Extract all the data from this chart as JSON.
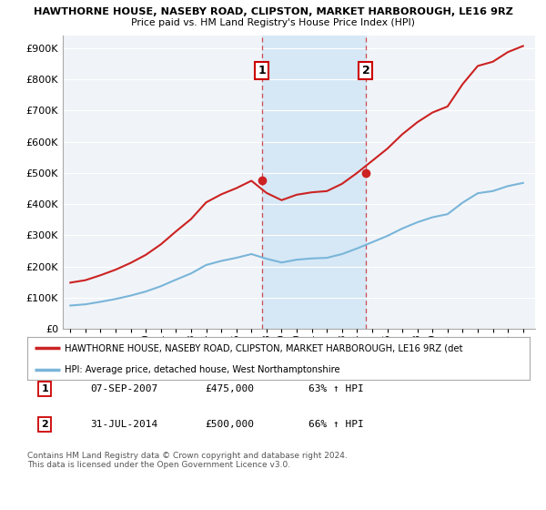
{
  "title1": "HAWTHORNE HOUSE, NASEBY ROAD, CLIPSTON, MARKET HARBOROUGH, LE16 9RZ",
  "title2": "Price paid vs. HM Land Registry's House Price Index (HPI)",
  "ylim": [
    0,
    940000
  ],
  "yticks": [
    0,
    100000,
    200000,
    300000,
    400000,
    500000,
    600000,
    700000,
    800000,
    900000
  ],
  "xlim_start": 1994.5,
  "xlim_end": 2025.8,
  "sale1_x": 2007.69,
  "sale1_y": 475000,
  "sale1_label": "1",
  "sale1_date": "07-SEP-2007",
  "sale1_price": "£475,000",
  "sale1_hpi": "63% ↑ HPI",
  "sale2_x": 2014.58,
  "sale2_y": 500000,
  "sale2_label": "2",
  "sale2_date": "31-JUL-2014",
  "sale2_price": "£500,000",
  "sale2_hpi": "66% ↑ HPI",
  "hpi_color": "#7ab5d9",
  "price_color": "#cc2222",
  "shaded_color": "#d6e8f5",
  "legend_label_price": "HAWTHORNE HOUSE, NASEBY ROAD, CLIPSTON, MARKET HARBOROUGH, LE16 9RZ (det",
  "legend_label_hpi": "HPI: Average price, detached house, West Northamptonshire",
  "footnote": "Contains HM Land Registry data © Crown copyright and database right 2024.\nThis data is licensed under the Open Government Licence v3.0.",
  "bg_color": "#ffffff",
  "plot_bg_color": "#f0f4f8"
}
